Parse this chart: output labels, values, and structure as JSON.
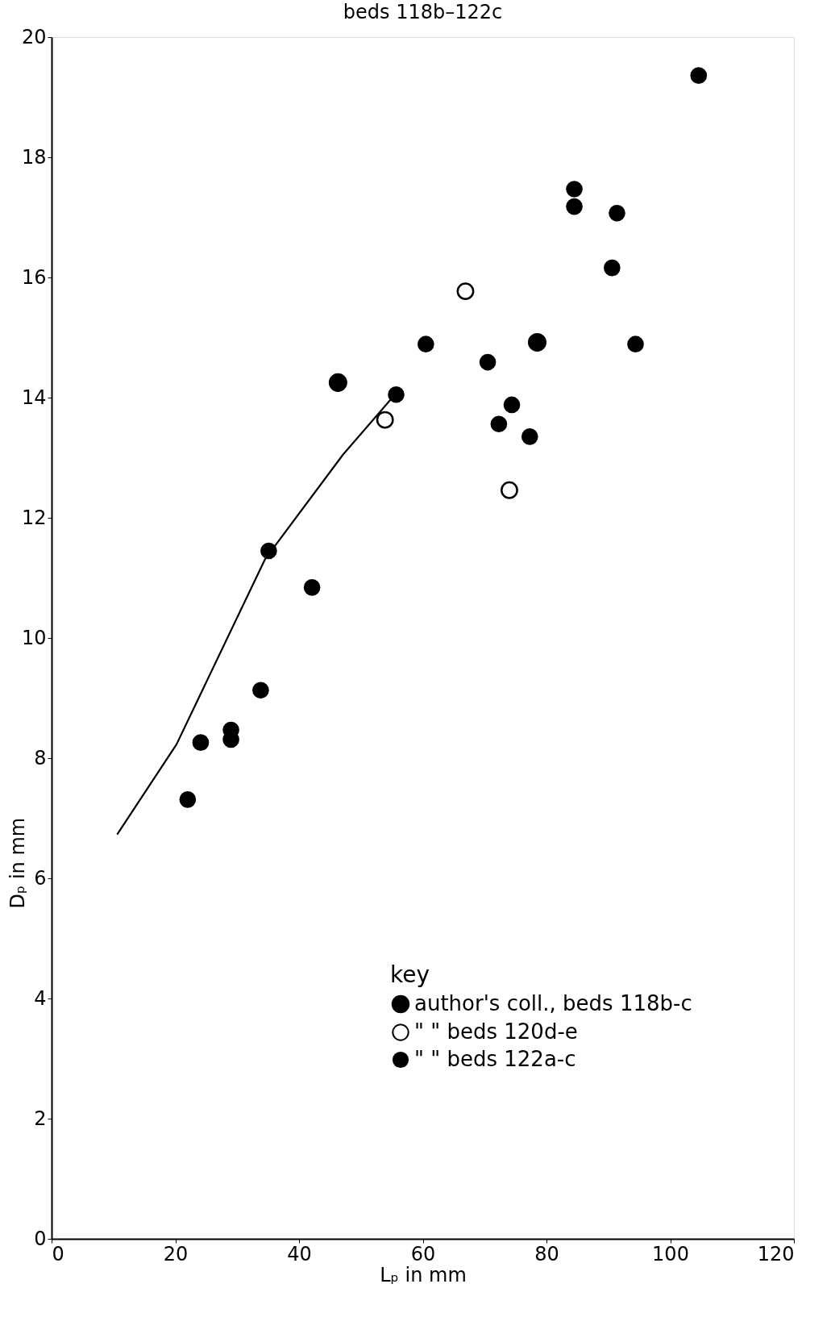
{
  "chart_data": {
    "type": "scatter",
    "title": "beds 118b–122c",
    "xlabel": "Lₚ  in mm",
    "ylabel": "Dₚ  in mm",
    "legend_title": "key",
    "legend": "bottom right",
    "grid": false,
    "marker": "circle",
    "xlim": [
      0,
      120
    ],
    "xticks": [
      0,
      20,
      40,
      60,
      80,
      100,
      120
    ],
    "ylim": [
      0,
      20
    ],
    "yticks": [
      0,
      2,
      4,
      6,
      8,
      10,
      12,
      14,
      16,
      18,
      20
    ],
    "series": [
      {
        "name": "author's coll., beds 118b-c",
        "color": "#000000",
        "x": [
          46.3,
          78.5
        ],
        "values": [
          14.25,
          14.92
        ]
      },
      {
        "name": "\"          \"    beds 120d-e",
        "color": "#000000",
        "x": [
          66.9,
          53.9,
          74.0
        ],
        "values": [
          15.77,
          13.63,
          12.46
        ]
      },
      {
        "name": "\"          \"    beds 122a-c",
        "color": "#000000",
        "x": [
          104.6,
          84.5,
          84.5,
          91.4,
          90.6,
          94.4,
          60.5,
          70.5,
          55.7,
          74.4,
          72.3,
          77.3,
          35.1,
          42.1,
          33.8,
          29.0,
          29.0,
          24.1,
          22.0
        ],
        "values": [
          19.36,
          17.47,
          17.18,
          17.07,
          16.16,
          14.89,
          14.89,
          14.59,
          14.05,
          13.88,
          13.56,
          13.35,
          11.45,
          10.84,
          9.13,
          8.47,
          8.31,
          8.26,
          7.31
        ]
      },
      {
        "type": "line",
        "color": "#000000",
        "marker": "none",
        "line_style": "solid",
        "x": [
          10.6,
          20.2,
          34.5,
          47.1,
          55.5
        ],
        "values": [
          6.73,
          8.23,
          11.31,
          13.05,
          14.05
        ]
      }
    ]
  }
}
